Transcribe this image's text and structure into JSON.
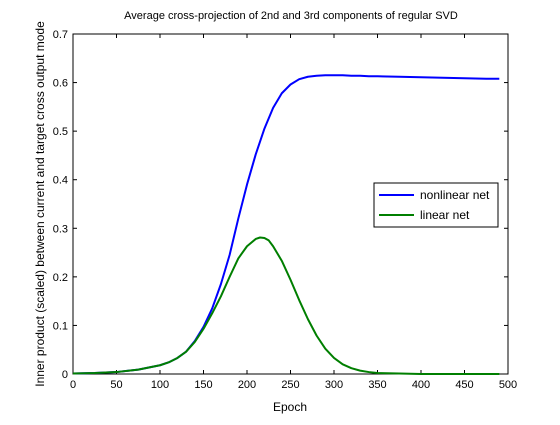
{
  "chart_data": {
    "type": "line",
    "title": "Average cross-projection of 2nd and 3rd components of regular SVD",
    "xlabel": "Epoch",
    "ylabel": "Inner product (scaled) between current and target cross output mode",
    "xlim": [
      0,
      500
    ],
    "ylim": [
      0,
      0.7
    ],
    "grid": false,
    "legend_position": "right",
    "x_ticks": [
      "0",
      "50",
      "100",
      "150",
      "200",
      "250",
      "300",
      "350",
      "400",
      "450",
      "500"
    ],
    "y_ticks": [
      "0",
      "0.1",
      "0.2",
      "0.3",
      "0.4",
      "0.5",
      "0.6",
      "0.7"
    ],
    "series": [
      {
        "name": "nonlinear net",
        "color": "#0000ff",
        "x": [
          0,
          25,
          50,
          75,
          100,
          110,
          120,
          130,
          140,
          150,
          160,
          170,
          180,
          190,
          200,
          210,
          220,
          230,
          240,
          250,
          260,
          270,
          280,
          290,
          300,
          310,
          320,
          330,
          340,
          350,
          375,
          400,
          425,
          450,
          475,
          490
        ],
        "y": [
          0.001,
          0.002,
          0.004,
          0.009,
          0.018,
          0.024,
          0.033,
          0.046,
          0.068,
          0.097,
          0.135,
          0.185,
          0.245,
          0.32,
          0.39,
          0.452,
          0.505,
          0.548,
          0.578,
          0.596,
          0.607,
          0.612,
          0.614,
          0.615,
          0.615,
          0.615,
          0.614,
          0.614,
          0.613,
          0.613,
          0.612,
          0.611,
          0.61,
          0.609,
          0.608,
          0.608
        ]
      },
      {
        "name": "linear net",
        "color": "#007f00",
        "x": [
          0,
          25,
          50,
          75,
          100,
          110,
          120,
          130,
          140,
          150,
          160,
          170,
          180,
          190,
          200,
          210,
          215,
          220,
          225,
          230,
          240,
          250,
          260,
          270,
          280,
          290,
          300,
          310,
          320,
          330,
          340,
          350,
          375,
          400,
          425,
          450,
          475,
          490
        ],
        "y": [
          0.001,
          0.002,
          0.004,
          0.009,
          0.018,
          0.024,
          0.033,
          0.046,
          0.066,
          0.093,
          0.125,
          0.16,
          0.2,
          0.238,
          0.263,
          0.278,
          0.281,
          0.28,
          0.275,
          0.263,
          0.233,
          0.194,
          0.152,
          0.113,
          0.079,
          0.052,
          0.033,
          0.02,
          0.012,
          0.007,
          0.004,
          0.002,
          0.001,
          0.0,
          0.0,
          0.0,
          0.0,
          0.0
        ]
      }
    ]
  }
}
